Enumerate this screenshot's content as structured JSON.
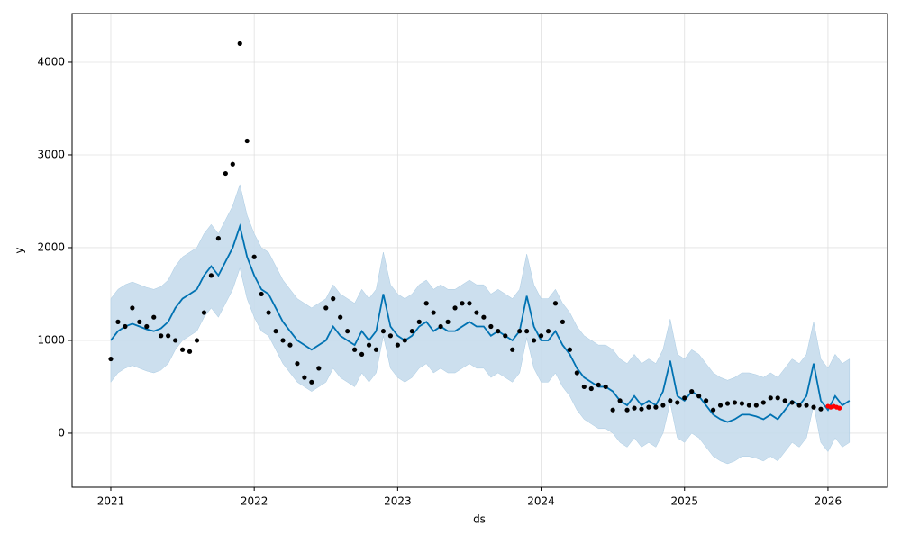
{
  "chart_data": {
    "type": "forecast",
    "xlabel": "ds",
    "ylabel": "y",
    "xlim": [
      2020.73,
      2026.415
    ],
    "ylim": [
      -583,
      4524
    ],
    "xticks": [
      2021,
      2022,
      2023,
      2024,
      2025,
      2026
    ],
    "yticks": [
      0,
      1000,
      2000,
      3000,
      4000
    ],
    "grid": true,
    "band": {
      "color": "#c6dcec",
      "x": [
        2021.0,
        2021.05,
        2021.1,
        2021.15,
        2021.2,
        2021.25,
        2021.3,
        2021.35,
        2021.4,
        2021.45,
        2021.5,
        2021.55,
        2021.6,
        2021.65,
        2021.7,
        2021.75,
        2021.8,
        2021.85,
        2021.9,
        2021.95,
        2022.0,
        2022.05,
        2022.1,
        2022.15,
        2022.2,
        2022.25,
        2022.3,
        2022.35,
        2022.4,
        2022.45,
        2022.5,
        2022.55,
        2022.6,
        2022.65,
        2022.7,
        2022.75,
        2022.8,
        2022.85,
        2022.9,
        2022.95,
        2023.0,
        2023.05,
        2023.1,
        2023.15,
        2023.2,
        2023.25,
        2023.3,
        2023.35,
        2023.4,
        2023.45,
        2023.5,
        2023.55,
        2023.6,
        2023.65,
        2023.7,
        2023.75,
        2023.8,
        2023.85,
        2023.9,
        2023.95,
        2024.0,
        2024.05,
        2024.1,
        2024.15,
        2024.2,
        2024.25,
        2024.3,
        2024.35,
        2024.4,
        2024.45,
        2024.5,
        2024.55,
        2024.6,
        2024.65,
        2024.7,
        2024.75,
        2024.8,
        2024.85,
        2024.9,
        2024.95,
        2025.0,
        2025.05,
        2025.1,
        2025.15,
        2025.2,
        2025.25,
        2025.3,
        2025.35,
        2025.4,
        2025.45,
        2025.5,
        2025.55,
        2025.6,
        2025.65,
        2025.7,
        2025.75,
        2025.8,
        2025.85,
        2025.9,
        2025.95,
        2026.0,
        2026.05,
        2026.1,
        2026.15
      ],
      "lower": [
        550,
        650,
        700,
        730,
        700,
        670,
        650,
        680,
        750,
        900,
        1000,
        1050,
        1100,
        1250,
        1350,
        1250,
        1400,
        1550,
        1780,
        1450,
        1250,
        1100,
        1050,
        900,
        750,
        650,
        550,
        500,
        450,
        500,
        550,
        700,
        600,
        550,
        500,
        650,
        550,
        650,
        1050,
        700,
        600,
        550,
        600,
        700,
        750,
        650,
        700,
        650,
        650,
        700,
        750,
        700,
        700,
        600,
        650,
        600,
        550,
        650,
        1030,
        700,
        550,
        550,
        650,
        500,
        400,
        250,
        150,
        100,
        50,
        50,
        0,
        -100,
        -150,
        -50,
        -150,
        -100,
        -150,
        0,
        330,
        -50,
        -100,
        0,
        -50,
        -150,
        -250,
        -300,
        -330,
        -300,
        -250,
        -250,
        -270,
        -300,
        -250,
        -300,
        -200,
        -100,
        -150,
        -50,
        300,
        -100,
        -200,
        -50,
        -150,
        -100
      ],
      "upper": [
        1450,
        1550,
        1600,
        1630,
        1600,
        1570,
        1550,
        1580,
        1650,
        1800,
        1900,
        1950,
        2000,
        2150,
        2250,
        2150,
        2300,
        2450,
        2680,
        2350,
        2150,
        2000,
        1950,
        1800,
        1650,
        1550,
        1450,
        1400,
        1350,
        1400,
        1450,
        1600,
        1500,
        1450,
        1400,
        1550,
        1450,
        1550,
        1950,
        1600,
        1500,
        1450,
        1500,
        1600,
        1650,
        1550,
        1600,
        1550,
        1550,
        1600,
        1650,
        1600,
        1600,
        1500,
        1550,
        1500,
        1450,
        1550,
        1930,
        1600,
        1450,
        1450,
        1550,
        1400,
        1300,
        1150,
        1050,
        1000,
        950,
        950,
        900,
        800,
        750,
        850,
        750,
        800,
        750,
        900,
        1230,
        850,
        800,
        900,
        850,
        750,
        650,
        600,
        570,
        600,
        650,
        650,
        630,
        600,
        650,
        600,
        700,
        800,
        750,
        850,
        1200,
        800,
        700,
        850,
        750,
        800
      ]
    },
    "series": [
      {
        "type": "line",
        "color": "#0072b2",
        "x": [
          2021.0,
          2021.05,
          2021.1,
          2021.15,
          2021.2,
          2021.25,
          2021.3,
          2021.35,
          2021.4,
          2021.45,
          2021.5,
          2021.55,
          2021.6,
          2021.65,
          2021.7,
          2021.75,
          2021.8,
          2021.85,
          2021.9,
          2021.95,
          2022.0,
          2022.05,
          2022.1,
          2022.15,
          2022.2,
          2022.25,
          2022.3,
          2022.35,
          2022.4,
          2022.45,
          2022.5,
          2022.55,
          2022.6,
          2022.65,
          2022.7,
          2022.75,
          2022.8,
          2022.85,
          2022.9,
          2022.95,
          2023.0,
          2023.05,
          2023.1,
          2023.15,
          2023.2,
          2023.25,
          2023.3,
          2023.35,
          2023.4,
          2023.45,
          2023.5,
          2023.55,
          2023.6,
          2023.65,
          2023.7,
          2023.75,
          2023.8,
          2023.85,
          2023.9,
          2023.95,
          2024.0,
          2024.05,
          2024.1,
          2024.15,
          2024.2,
          2024.25,
          2024.3,
          2024.35,
          2024.4,
          2024.45,
          2024.5,
          2024.55,
          2024.6,
          2024.65,
          2024.7,
          2024.75,
          2024.8,
          2024.85,
          2024.9,
          2024.95,
          2025.0,
          2025.05,
          2025.1,
          2025.15,
          2025.2,
          2025.25,
          2025.3,
          2025.35,
          2025.4,
          2025.45,
          2025.5,
          2025.55,
          2025.6,
          2025.65,
          2025.7,
          2025.75,
          2025.8,
          2025.85,
          2025.9,
          2025.95,
          2026.0,
          2026.05,
          2026.1,
          2026.15
        ],
        "values": [
          1000,
          1100,
          1150,
          1180,
          1150,
          1120,
          1100,
          1130,
          1200,
          1350,
          1450,
          1500,
          1550,
          1700,
          1800,
          1700,
          1850,
          2000,
          2230,
          1900,
          1700,
          1550,
          1500,
          1350,
          1200,
          1100,
          1000,
          950,
          900,
          950,
          1000,
          1150,
          1050,
          1000,
          950,
          1100,
          1000,
          1100,
          1500,
          1150,
          1050,
          1000,
          1050,
          1150,
          1200,
          1100,
          1150,
          1100,
          1100,
          1150,
          1200,
          1150,
          1150,
          1050,
          1100,
          1050,
          1000,
          1100,
          1480,
          1150,
          1000,
          1000,
          1100,
          950,
          850,
          700,
          600,
          550,
          500,
          500,
          450,
          350,
          300,
          400,
          300,
          350,
          300,
          450,
          780,
          400,
          350,
          450,
          400,
          300,
          200,
          150,
          120,
          150,
          200,
          200,
          180,
          150,
          200,
          150,
          250,
          350,
          300,
          400,
          750,
          350,
          250,
          400,
          300,
          350
        ]
      },
      {
        "type": "scatter",
        "color": "#000000",
        "x": [
          2021.0,
          2021.05,
          2021.1,
          2021.15,
          2021.2,
          2021.25,
          2021.3,
          2021.35,
          2021.4,
          2021.45,
          2021.5,
          2021.55,
          2021.6,
          2021.65,
          2021.7,
          2021.75,
          2021.8,
          2021.85,
          2021.9,
          2021.95,
          2022.0,
          2022.05,
          2022.1,
          2022.15,
          2022.2,
          2022.25,
          2022.3,
          2022.35,
          2022.4,
          2022.45,
          2022.5,
          2022.55,
          2022.6,
          2022.65,
          2022.7,
          2022.75,
          2022.8,
          2022.85,
          2022.9,
          2022.95,
          2023.0,
          2023.05,
          2023.1,
          2023.15,
          2023.2,
          2023.25,
          2023.3,
          2023.35,
          2023.4,
          2023.45,
          2023.5,
          2023.55,
          2023.6,
          2023.65,
          2023.7,
          2023.75,
          2023.8,
          2023.85,
          2023.9,
          2023.95,
          2024.0,
          2024.05,
          2024.1,
          2024.15,
          2024.2,
          2024.25,
          2024.3,
          2024.35,
          2024.4,
          2024.45,
          2024.5,
          2024.55,
          2024.6,
          2024.65,
          2024.7,
          2024.75,
          2024.8,
          2024.85,
          2024.9,
          2024.95,
          2025.0,
          2025.05,
          2025.1,
          2025.15,
          2025.2,
          2025.25,
          2025.3,
          2025.35,
          2025.4,
          2025.45,
          2025.5,
          2025.55,
          2025.6,
          2025.65,
          2025.7,
          2025.75,
          2025.8,
          2025.85,
          2025.9,
          2025.95
        ],
        "values": [
          800,
          1200,
          1150,
          1350,
          1200,
          1150,
          1250,
          1050,
          1050,
          1000,
          900,
          880,
          1000,
          1300,
          1700,
          2100,
          2800,
          2900,
          4200,
          3150,
          1900,
          1500,
          1300,
          1100,
          1000,
          950,
          750,
          600,
          550,
          700,
          1350,
          1450,
          1250,
          1100,
          900,
          850,
          950,
          900,
          1100,
          1050,
          950,
          1000,
          1100,
          1200,
          1400,
          1300,
          1150,
          1200,
          1350,
          1400,
          1400,
          1300,
          1250,
          1150,
          1100,
          1050,
          900,
          1100,
          1100,
          1000,
          1050,
          1100,
          1400,
          1200,
          900,
          650,
          500,
          480,
          520,
          500,
          250,
          350,
          250,
          270,
          260,
          280,
          280,
          300,
          350,
          330,
          380,
          450,
          400,
          350,
          250,
          300,
          320,
          330,
          320,
          300,
          300,
          330,
          380,
          380,
          350,
          330,
          300,
          300,
          280,
          260
        ]
      },
      {
        "type": "scatter",
        "color": "#ff0000",
        "x": [
          2026.0,
          2026.02,
          2026.04,
          2026.06,
          2026.08
        ],
        "values": [
          290,
          280,
          290,
          280,
          270
        ]
      }
    ]
  }
}
